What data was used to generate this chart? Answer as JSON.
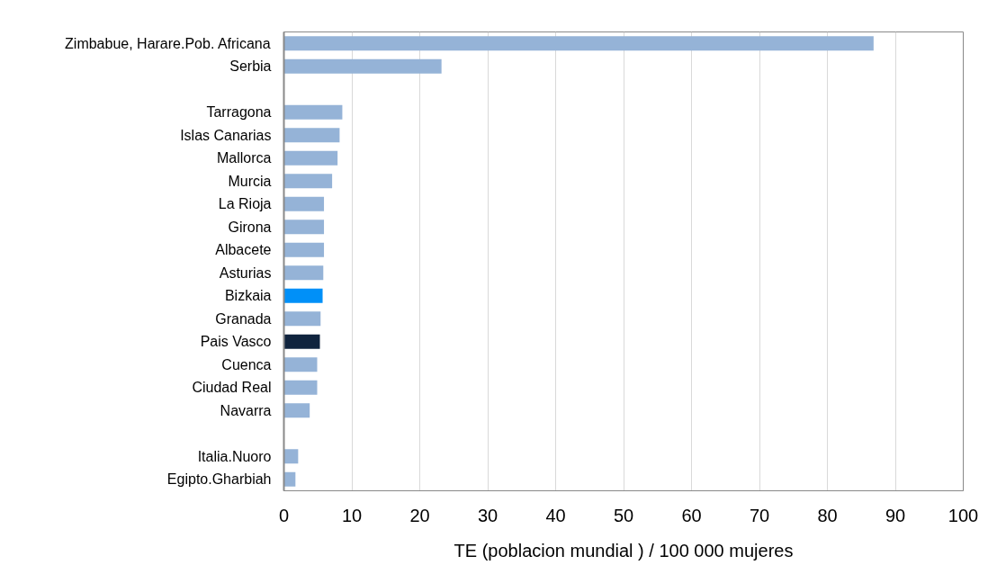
{
  "chart_data": {
    "type": "bar",
    "orientation": "horizontal",
    "xlabel": "TE (poblacion mundial ) / 100 000 mujeres",
    "categories": [
      "Zimbabue, Harare.Pob. Africana",
      "Serbia",
      null,
      "Tarragona",
      "Islas Canarias",
      "Mallorca",
      "Murcia",
      "La Rioja",
      "Girona",
      "Albacete",
      "Asturias",
      "Bizkaia",
      "Granada",
      "Pais Vasco",
      "Cuenca",
      "Ciudad Real",
      "Navarra",
      null,
      "Italia.Nuoro",
      "Egipto.Gharbiah"
    ],
    "values": [
      86.8,
      23.2,
      null,
      8.6,
      8.2,
      7.9,
      7.1,
      5.9,
      5.9,
      5.9,
      5.8,
      5.7,
      5.4,
      5.3,
      4.9,
      4.9,
      3.8,
      null,
      2.1,
      1.7
    ],
    "colors": [
      "#95b3d7",
      "#95b3d7",
      "#95b3d7",
      "#95b3d7",
      "#95b3d7",
      "#95b3d7",
      "#95b3d7",
      "#95b3d7",
      "#95b3d7",
      "#95b3d7",
      "#95b3d7",
      "#0090f8",
      "#95b3d7",
      "#10243e",
      "#95b3d7",
      "#95b3d7",
      "#95b3d7",
      "#95b3d7",
      "#95b3d7",
      "#95b3d7"
    ],
    "xlim": [
      0,
      100
    ],
    "xticks": [
      0,
      10,
      20,
      30,
      40,
      50,
      60,
      70,
      80,
      90,
      100
    ],
    "grid": "x"
  }
}
